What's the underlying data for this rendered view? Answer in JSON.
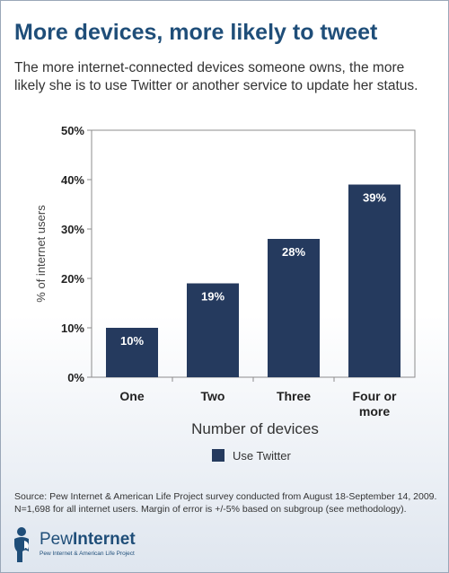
{
  "title": "More devices, more likely to tweet",
  "subtitle": "The more internet-connected devices someone owns, the more likely she is to use Twitter or another service to update her status.",
  "source": "Source: Pew Internet & American Life Project survey conducted from August 18-September 14, 2009. N=1,698 for all internet users. Margin of error is +/-5% based on subgroup (see methodology).",
  "logo": {
    "word1": "Pew",
    "word2": "Internet",
    "tagline": "Pew Internet & American Life Project"
  },
  "colors": {
    "title": "#1f4e79",
    "bar": "#253a5e"
  },
  "chart_data": {
    "type": "bar",
    "categories": [
      "One",
      "Two",
      "Three",
      "Four or more"
    ],
    "category_lines": [
      [
        "One"
      ],
      [
        "Two"
      ],
      [
        "Three"
      ],
      [
        "Four or",
        "more"
      ]
    ],
    "series": [
      {
        "name": "Use Twitter",
        "values": [
          10,
          19,
          28,
          39
        ]
      }
    ],
    "data_labels": [
      "10%",
      "19%",
      "28%",
      "39%"
    ],
    "xlabel": "Number of devices",
    "ylabel": "% of internet users",
    "ylim": [
      0,
      50
    ],
    "yticks": [
      0,
      10,
      20,
      30,
      40,
      50
    ],
    "ytick_labels": [
      "0%",
      "10%",
      "20%",
      "30%",
      "40%",
      "50%"
    ],
    "grid": false,
    "legend_position": "bottom"
  }
}
